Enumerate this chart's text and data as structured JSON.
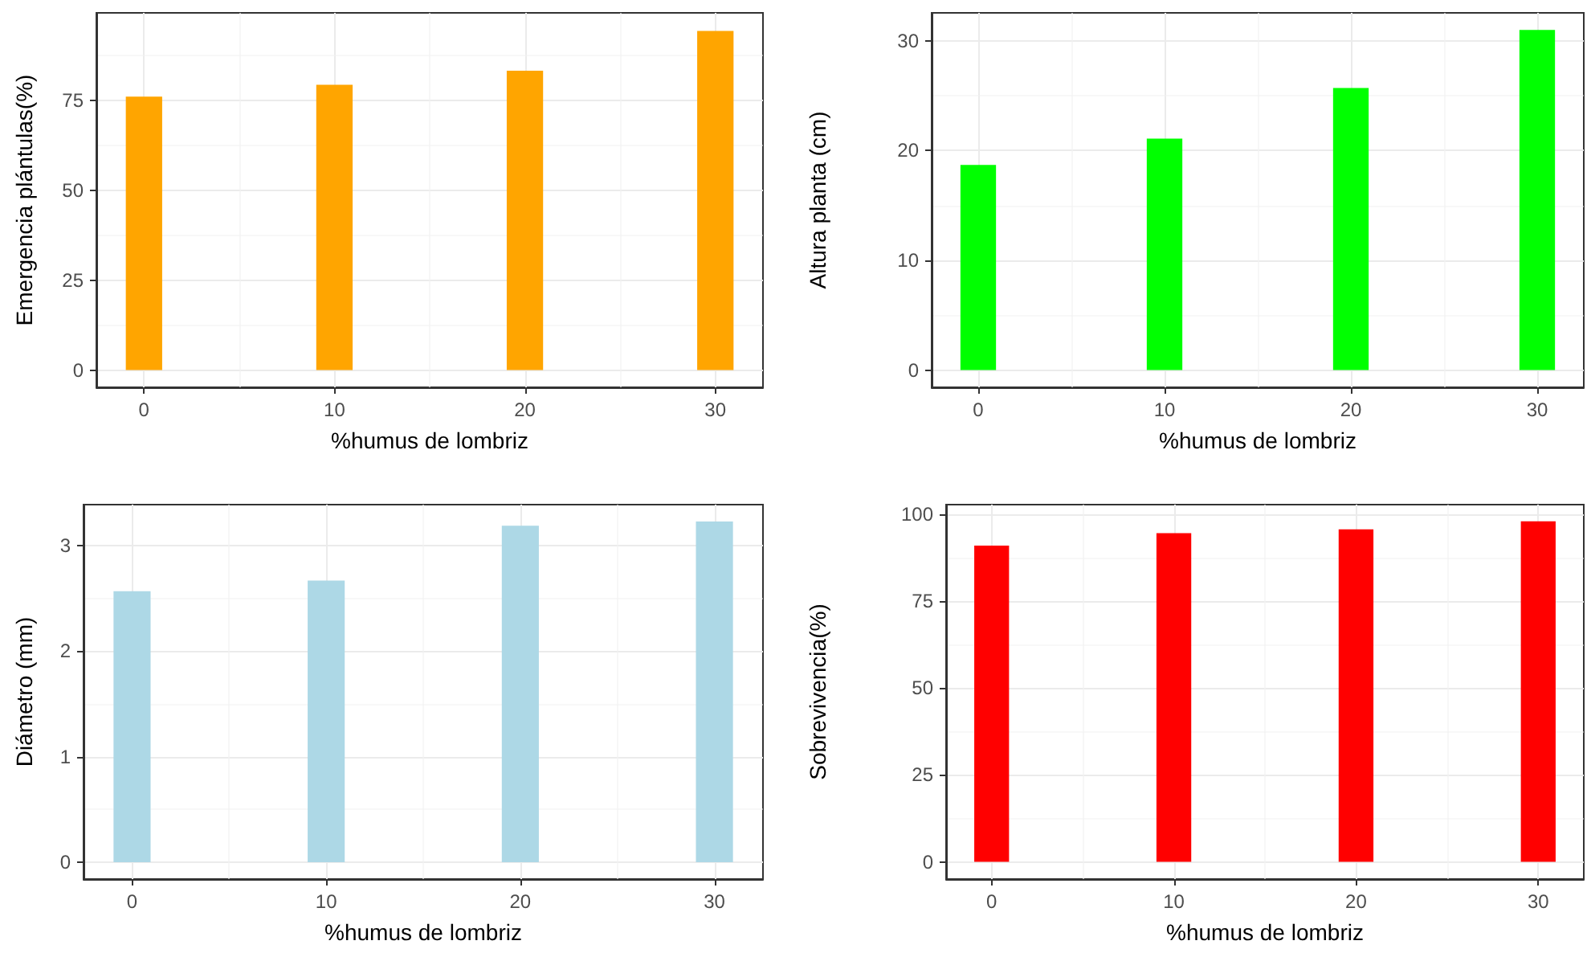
{
  "chart_data": [
    {
      "type": "bar",
      "xlabel": "%humus de lombriz",
      "ylabel": "Emergencia plántulas(%)",
      "x": [
        0,
        10,
        20,
        30
      ],
      "values": [
        76,
        79.3,
        83.2,
        94.3
      ],
      "color": "#ffa500",
      "xlim": [
        -2.5,
        32.5
      ],
      "xticks": [
        0,
        10,
        20,
        30
      ],
      "ylim": [
        -4.8,
        99.3
      ],
      "yticks": [
        0,
        25,
        50,
        75
      ],
      "grid": true
    },
    {
      "type": "bar",
      "xlabel": "%humus de lombriz",
      "ylabel": "Altura planta (cm)",
      "x": [
        0,
        10,
        20,
        30
      ],
      "values": [
        18.7,
        21.1,
        25.7,
        31
      ],
      "color": "#00ff00",
      "xlim": [
        -2.5,
        32.5
      ],
      "xticks": [
        0,
        10,
        20,
        30
      ],
      "ylim": [
        -1.57,
        32.55
      ],
      "yticks": [
        0,
        10,
        20,
        30
      ],
      "grid": true
    },
    {
      "type": "bar",
      "xlabel": "%humus de lombriz",
      "ylabel": "Diámetro (mm)",
      "x": [
        0,
        10,
        20,
        30
      ],
      "values": [
        2.57,
        2.67,
        3.19,
        3.23
      ],
      "color": "#add8e6",
      "xlim": [
        -2.5,
        32.5
      ],
      "xticks": [
        0,
        10,
        20,
        30
      ],
      "ylim": [
        -0.16,
        3.39
      ],
      "yticks": [
        0,
        1,
        2,
        3
      ],
      "grid": true
    },
    {
      "type": "bar",
      "xlabel": "%humus de lombriz",
      "ylabel": "Sobrevivencia(%)",
      "x": [
        0,
        10,
        20,
        30
      ],
      "values": [
        91,
        94.6,
        95.7,
        98
      ],
      "color": "#ff0000",
      "xlim": [
        -2.5,
        32.5
      ],
      "xticks": [
        0,
        10,
        20,
        30
      ],
      "ylim": [
        -4.95,
        102.8
      ],
      "yticks": [
        0,
        25,
        50,
        75,
        100
      ],
      "grid": true
    }
  ]
}
